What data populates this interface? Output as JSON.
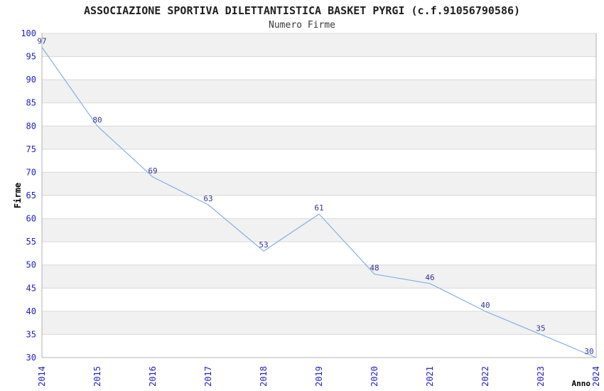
{
  "header": {
    "title": "ASSOCIAZIONE SPORTIVA DILETTANTISTICA BASKET PYRGI (c.f.91056790586)",
    "subtitle": "Numero Firme"
  },
  "chart_data": {
    "type": "line",
    "title": "ASSOCIAZIONE SPORTIVA DILETTANTISTICA BASKET PYRGI (c.f.91056790586)",
    "subtitle": "Numero Firme",
    "categories": [
      "2014",
      "2015",
      "2016",
      "2017",
      "2018",
      "2019",
      "2020",
      "2021",
      "2022",
      "2023",
      "2024"
    ],
    "series": [
      {
        "name": "Numero Firme",
        "values": [
          97,
          80,
          69,
          63,
          53,
          61,
          48,
          46,
          40,
          35,
          30
        ]
      }
    ],
    "xlabel": "Anno",
    "ylabel": "Firme",
    "ylim": [
      30,
      100
    ],
    "ytick_step": 5,
    "yticks": [
      30,
      35,
      40,
      45,
      50,
      55,
      60,
      65,
      70,
      75,
      80,
      85,
      90,
      95,
      100
    ],
    "grid": "horizontal",
    "alternating_bands": true,
    "legend_position": "none",
    "colors": {
      "line": "#82b1e6",
      "tick_label": "#2020cc",
      "data_label": "#333399",
      "band": "#f1f1f1",
      "gridline": "#d9d9d9",
      "spine": "#b0b0b0",
      "axis_title": "#000000"
    }
  }
}
